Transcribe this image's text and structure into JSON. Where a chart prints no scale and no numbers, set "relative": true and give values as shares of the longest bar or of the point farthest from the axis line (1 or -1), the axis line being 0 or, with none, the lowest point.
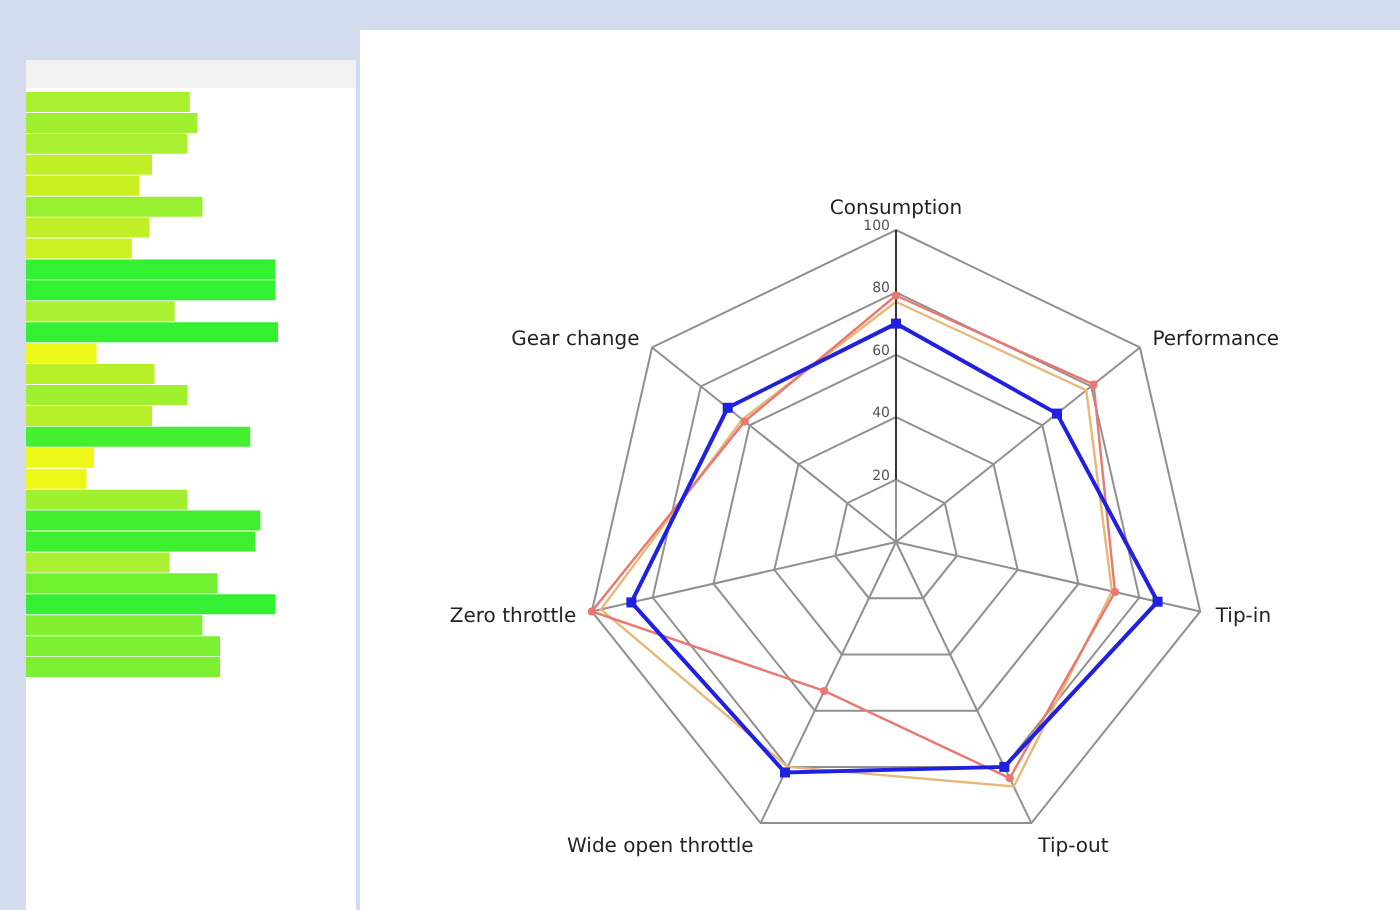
{
  "chart_data": [
    {
      "type": "bar",
      "orientation": "horizontal",
      "relative": true,
      "tick_labels": false,
      "grid": false,
      "legend": false,
      "categories": [
        null,
        null,
        null,
        null,
        null,
        null,
        null,
        null,
        null,
        null,
        null,
        null,
        null,
        null,
        null,
        null,
        null,
        null,
        null,
        null,
        null,
        null,
        null,
        null,
        null,
        null,
        null,
        null
      ],
      "values": [
        0.65,
        0.68,
        0.64,
        0.5,
        0.45,
        0.7,
        0.49,
        0.42,
        0.99,
        0.99,
        0.59,
        1,
        0.28,
        0.51,
        0.64,
        0.5,
        0.89,
        0.27,
        0.24,
        0.64,
        0.93,
        0.91,
        0.57,
        0.76,
        0.99,
        0.7,
        0.77,
        0.77
      ],
      "colors": [
        "#a8f030",
        "#a0f030",
        "#a8f030",
        "#c0f028",
        "#c8f020",
        "#98f030",
        "#c0f028",
        "#ccf020",
        "#33f033",
        "#33f033",
        "#a8f030",
        "#33f033",
        "#eef818",
        "#b8f028",
        "#a0f030",
        "#b8f028",
        "#44f030",
        "#eef818",
        "#eef818",
        "#a0f030",
        "#40f030",
        "#40f030",
        "#a8f030",
        "#70f030",
        "#33f033",
        "#80f030",
        "#7cf030",
        "#7cf030"
      ]
    },
    {
      "type": "radar",
      "grid": true,
      "legend": false,
      "categories": [
        "Consumption",
        "Performance",
        "Tip-in",
        "Tip-out",
        "Wide open throttle",
        "Zero throttle",
        "Gear change"
      ],
      "ylim": [
        0,
        100
      ],
      "yticks": [
        20,
        40,
        60,
        80,
        100
      ],
      "series": [
        {
          "color": "#e8b878",
          "marker": "none",
          "values": [
            77,
            78,
            71,
            87,
            80,
            97,
            63
          ]
        },
        {
          "color": "#e87870",
          "marker": "circle",
          "values": [
            79,
            81,
            72,
            84,
            53,
            100,
            62
          ]
        },
        {
          "color": "#2020e0",
          "marker": "square",
          "values": [
            70,
            66,
            86,
            80,
            82,
            87,
            69
          ]
        }
      ]
    }
  ]
}
